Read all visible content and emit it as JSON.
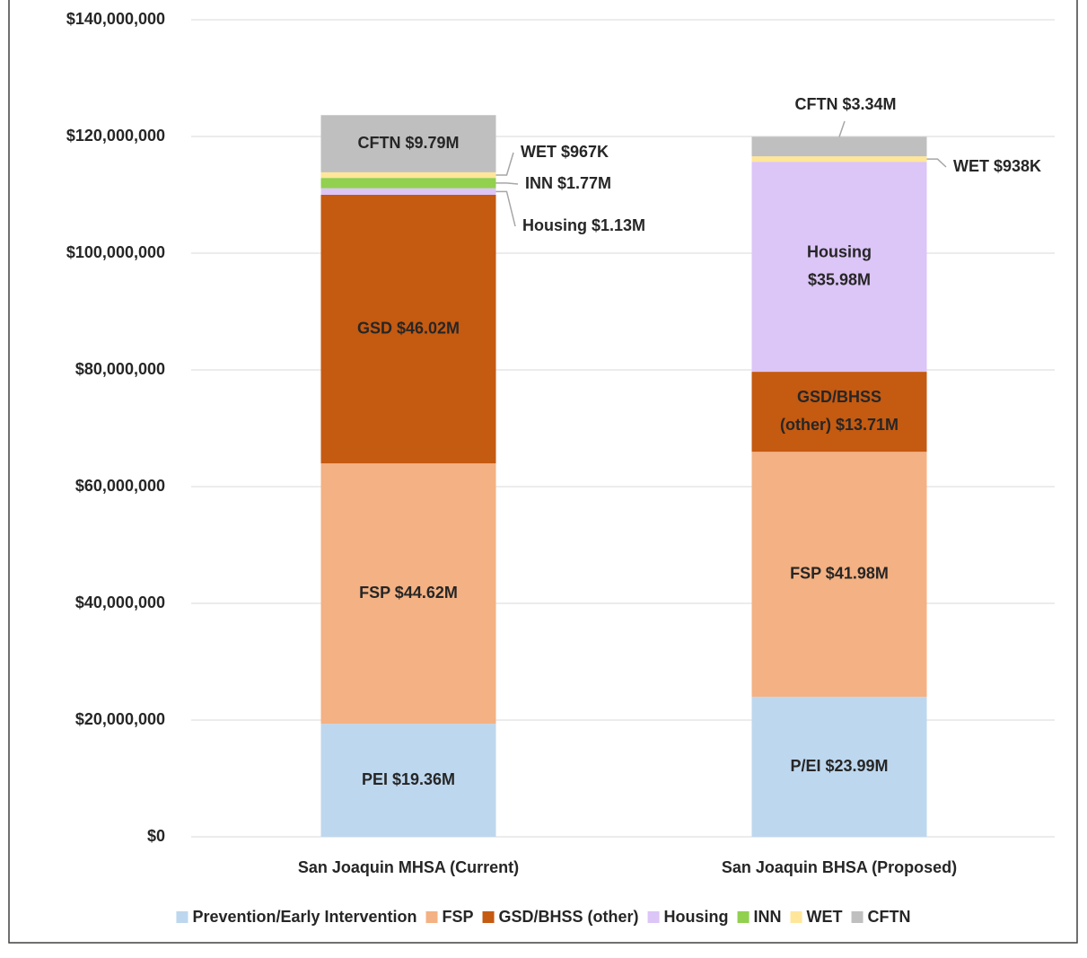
{
  "chart_data": {
    "type": "stacked_bar",
    "categories": [
      "San Joaquin MHSA (Current)",
      "San Joaquin BHSA (Proposed)"
    ],
    "series": [
      {
        "name": "Prevention/Early Intervention",
        "color": "#bdd7ee",
        "values": [
          19360000,
          23990000
        ],
        "value_labels": [
          "PEI $19.36M",
          "P/EI $23.99M"
        ]
      },
      {
        "name": "FSP",
        "color": "#f4b183",
        "values": [
          44620000,
          41980000
        ],
        "value_labels": [
          "FSP $44.62M",
          "FSP $41.98M"
        ]
      },
      {
        "name": "GSD/BHSS (other)",
        "color": "#c55a11",
        "values": [
          46020000,
          13710000
        ],
        "value_labels": [
          "GSD $46.02M",
          "GSD/BHSS (other) $13.71M"
        ]
      },
      {
        "name": "Housing",
        "color": "#dcc5f7",
        "values": [
          1130000,
          35980000
        ],
        "value_labels": [
          "Housing $1.13M",
          "Housing $35.98M"
        ]
      },
      {
        "name": "INN",
        "color": "#92d050",
        "values": [
          1770000,
          0
        ],
        "value_labels": [
          "INN $1.77M",
          null
        ]
      },
      {
        "name": "WET",
        "color": "#ffe699",
        "values": [
          967000,
          938000
        ],
        "value_labels": [
          "WET $967K",
          "WET $938K"
        ]
      },
      {
        "name": "CFTN",
        "color": "#bfbfbf",
        "values": [
          9790000,
          3340000
        ],
        "value_labels": [
          "CFTN $9.79M",
          "CFTN $3.34M"
        ]
      }
    ],
    "ylim": [
      0,
      140000000
    ],
    "yticks": [
      {
        "value": 0,
        "label": "$0"
      },
      {
        "value": 20000000,
        "label": "$20,000,000"
      },
      {
        "value": 40000000,
        "label": "$40,000,000"
      },
      {
        "value": 60000000,
        "label": "$60,000,000"
      },
      {
        "value": 80000000,
        "label": "$80,000,000"
      },
      {
        "value": 100000000,
        "label": "$100,000,000"
      },
      {
        "value": 120000000,
        "label": "$120,000,000"
      },
      {
        "value": 140000000,
        "label": "$140,000,000"
      }
    ],
    "grid": true,
    "legend": "bottom"
  }
}
